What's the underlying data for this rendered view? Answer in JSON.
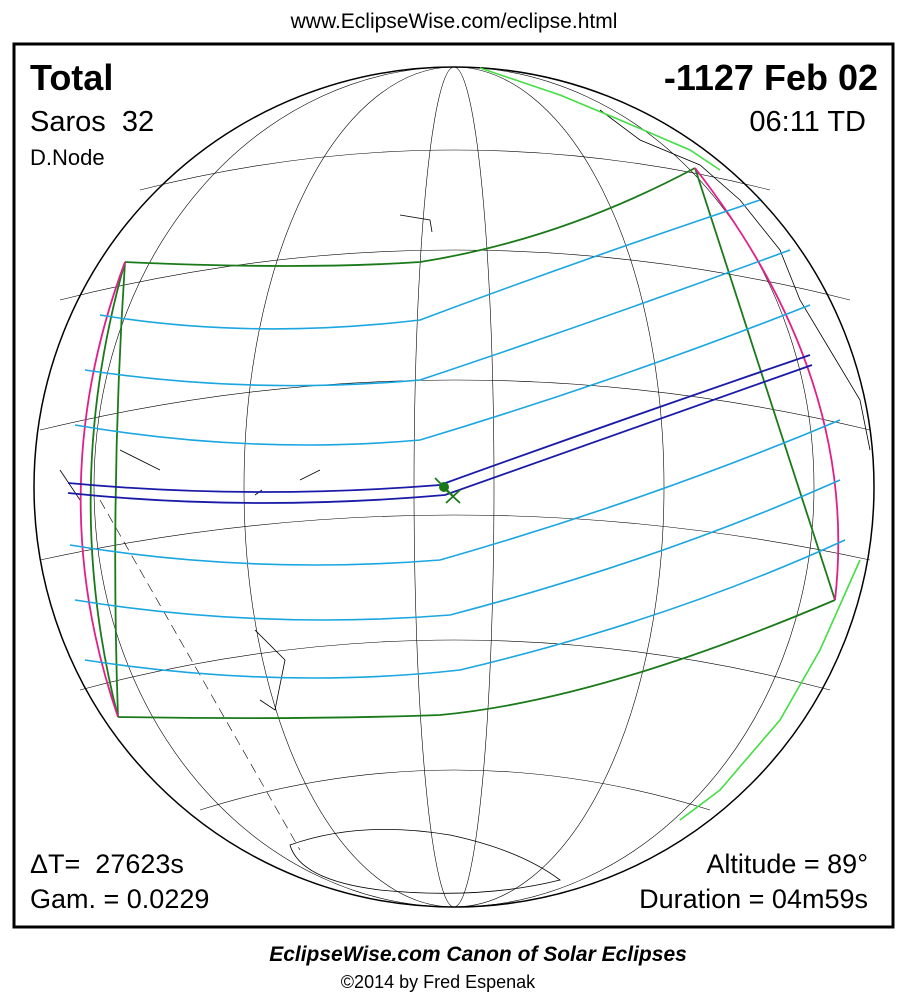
{
  "header": {
    "url": "www.EclipseWise.com/eclipse.html"
  },
  "eclipse": {
    "type": "Total",
    "date": "-1127 Feb 02",
    "saros": "Saros  32",
    "time": "06:11 TD",
    "node": "D.Node",
    "delta_t": "ΔT=  27623s",
    "gamma": "Gam. = 0.0229",
    "altitude": "Altitude = 89°",
    "duration": "Duration = 04m59s"
  },
  "footer": {
    "title": "EclipseWise.com Canon of Solar Eclipses",
    "credit": "©2014 by Fred Espenak"
  }
}
